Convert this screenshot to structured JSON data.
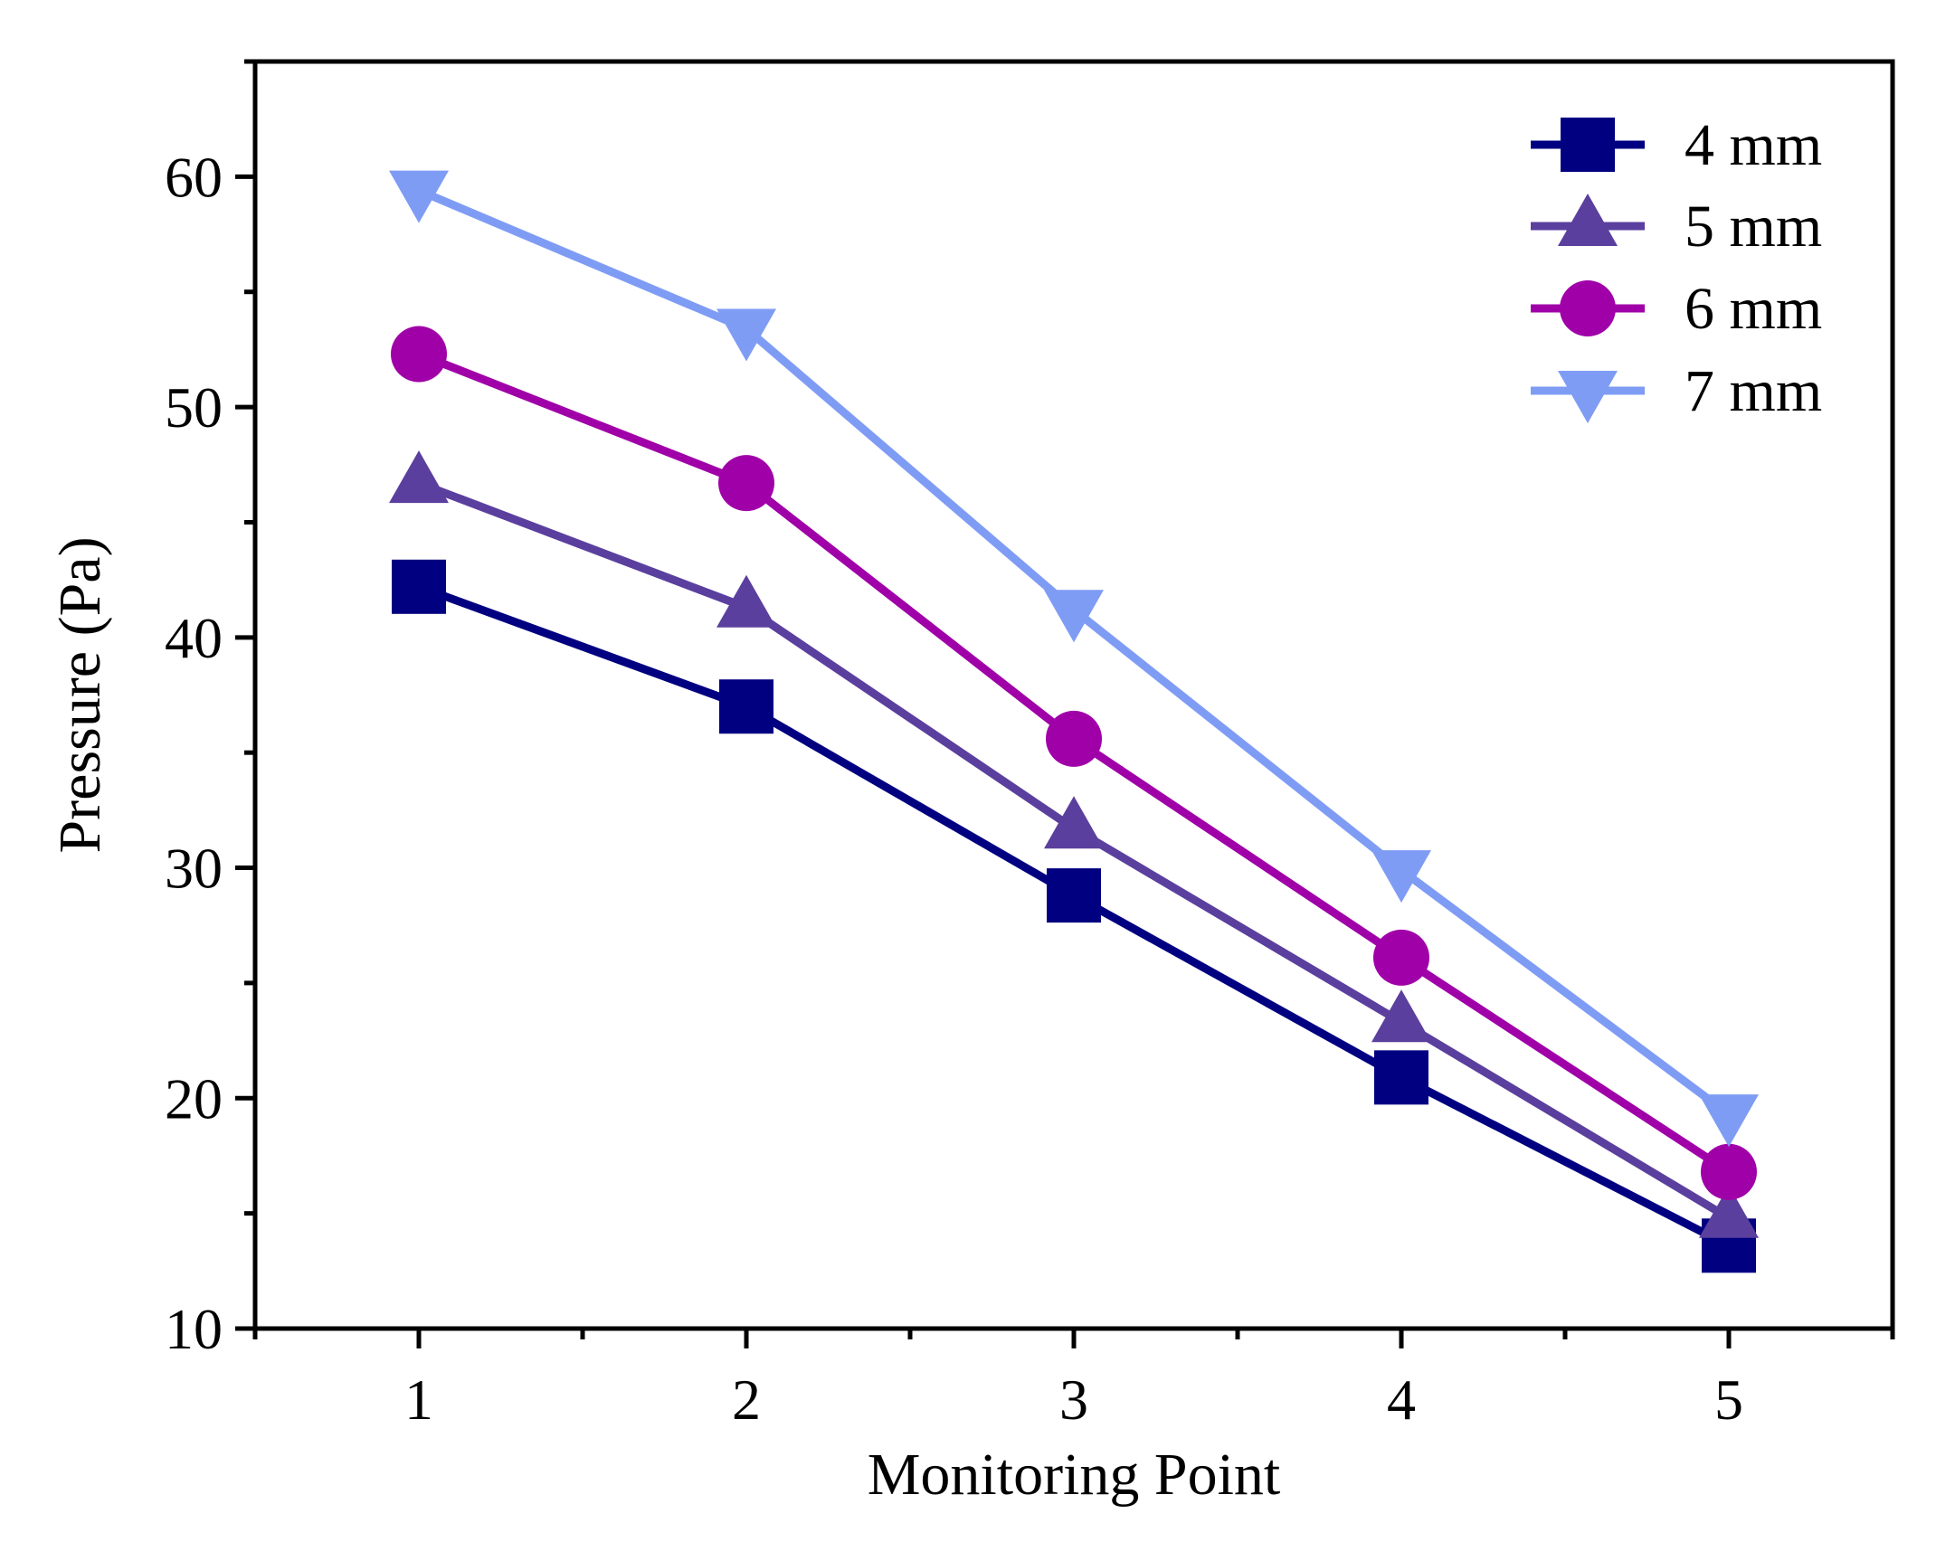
{
  "chart_data": {
    "type": "line",
    "title": "",
    "xlabel": "Monitoring Point",
    "ylabel": "Pressure (Pa)",
    "x": [
      1,
      2,
      3,
      4,
      5
    ],
    "x_tick_labels": [
      "1",
      "2",
      "3",
      "4",
      "5"
    ],
    "y_tick_labels": [
      "10",
      "20",
      "30",
      "40",
      "50",
      "60"
    ],
    "xlim": [
      0.5,
      5.5
    ],
    "ylim": [
      10,
      65
    ],
    "grid": false,
    "legend_position": "top-right",
    "series": [
      {
        "name": "4 mm",
        "marker": "square",
        "color": "#000080",
        "values": [
          42.2,
          37.0,
          28.8,
          20.9,
          13.6
        ]
      },
      {
        "name": "5 mm",
        "marker": "triangle-up",
        "color": "#5b3f9e",
        "values": [
          46.7,
          41.3,
          31.7,
          23.3,
          14.8
        ]
      },
      {
        "name": "6 mm",
        "marker": "circle",
        "color": "#a000a8",
        "values": [
          52.3,
          46.7,
          35.6,
          26.1,
          16.8
        ]
      },
      {
        "name": "7 mm",
        "marker": "triangle-down",
        "color": "#7f9cf5",
        "values": [
          59.4,
          53.4,
          41.2,
          29.9,
          19.3
        ]
      }
    ]
  }
}
